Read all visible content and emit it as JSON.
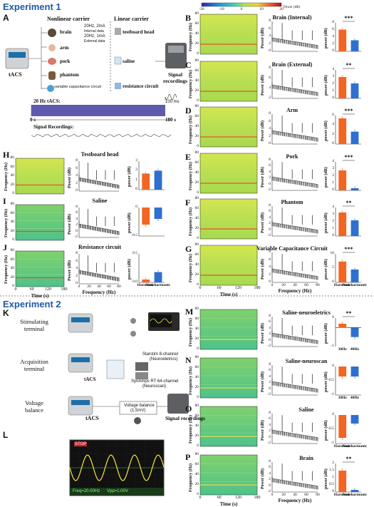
{
  "exp1": "Experiment 1",
  "exp2": "Experiment 2",
  "panels": {
    "A": "A",
    "B": "B",
    "C": "C",
    "D": "D",
    "E": "E",
    "F": "F",
    "G": "G",
    "H": "H",
    "I": "I",
    "J": "J",
    "K": "K",
    "L": "L",
    "M": "M",
    "N": "N",
    "O": "O",
    "P": "P"
  },
  "colorbar": {
    "ticks": [
      "-20",
      "-10",
      "0",
      "10",
      "20"
    ],
    "unit": "Power (dB)",
    "colors": [
      "#2b22b8",
      "#1e8fe0",
      "#36d1c4",
      "#b7e44a",
      "#f5d233",
      "#f0622e",
      "#b0121b"
    ]
  },
  "diagramA": {
    "nonlinear": "Nonlinear carrier",
    "linear": "Linear carrier",
    "tacs": "tACS",
    "brain": "brain",
    "brain_notes": [
      "20Hz, 2mA",
      "Internal data",
      "20Hz, 1mA",
      "External data"
    ],
    "arm": "arm",
    "pork": "pork",
    "phantom": "phantom",
    "varcap": "variable capacitance circuit",
    "testboard": "testboard head",
    "saline": "saline",
    "resistance": "resistance circuit",
    "signal": "Signal recordings",
    "wave_label": "20 Hz tACS:",
    "wave_start": "0 s",
    "wave_end": "180 s",
    "wave_scale": "100 ms",
    "sig_rec": "Signal Recordings:"
  },
  "axes": {
    "freq": "Frequency (Hz)",
    "time": "Time (s)",
    "power": "Power (dB)",
    "power_small": "power (dB)",
    "freq_x": "Frequency (Hz)"
  },
  "spec_yticks": [
    "0",
    "20",
    "40",
    "60",
    "80"
  ],
  "spec_xticks": [
    "0",
    "60",
    "120",
    "180"
  ],
  "psd_xticks": [
    "0",
    "20",
    "40",
    "60",
    "80"
  ],
  "bar_cats": [
    "Harmonic",
    "Non-harmonic"
  ],
  "bar_cats2": [
    "30Hz",
    "40Hz"
  ],
  "bar_colors": {
    "harmonic": "#f26522",
    "nonharmonic": "#2e6fcf"
  },
  "rows1": [
    {
      "panel": "B",
      "title": "Brain  (Internal)",
      "sig": "***",
      "bars": [
        6.1,
        3.1
      ],
      "ylim": [
        0,
        8
      ],
      "yticks": [
        "0",
        "2",
        "4",
        "6",
        "8"
      ],
      "psdTicks": [
        "0",
        "2",
        "4",
        "6",
        "8"
      ]
    },
    {
      "panel": "C",
      "title": "Brain  (External)",
      "sig": "**",
      "bars": [
        3.0,
        2.1
      ],
      "ylim": [
        0,
        4
      ],
      "yticks": [
        "0",
        "1",
        "2",
        "3",
        "4"
      ],
      "psdTicks": [
        "2",
        "4",
        "6",
        "8"
      ]
    },
    {
      "panel": "D",
      "title": "Arm",
      "sig": "***",
      "bars": [
        5.4,
        2.6
      ],
      "ylim": [
        0,
        6
      ],
      "yticks": [
        "0",
        "2",
        "4",
        "6"
      ],
      "psdTicks": [
        "0",
        "2",
        "4",
        "6",
        "8"
      ]
    },
    {
      "panel": "E",
      "title": "Pork",
      "sig": "***",
      "bars": [
        2.8,
        0.3
      ],
      "ylim": [
        0,
        4
      ],
      "yticks": [
        "0",
        "1",
        "2",
        "3",
        "4"
      ],
      "psdTicks": [
        "-2",
        "0",
        "2",
        "4",
        "6",
        "8"
      ]
    },
    {
      "panel": "F",
      "title": "Phantom",
      "sig": "**",
      "bars": [
        3.3,
        2.2
      ],
      "ylim": [
        0,
        4
      ],
      "yticks": [
        "0",
        "1",
        "2",
        "3",
        "4"
      ],
      "psdTicks": [
        "-2",
        "0",
        "2",
        "4",
        "6",
        "8"
      ]
    },
    {
      "panel": "G",
      "title": "Variable Capacitance Circuit",
      "sig": "***",
      "bars": [
        7.3,
        4.5
      ],
      "ylim": [
        0,
        10
      ],
      "yticks": [
        "0",
        "5",
        "10"
      ],
      "psdTicks": [
        "0",
        "2",
        "4",
        "6",
        "8"
      ]
    }
  ],
  "rowsLeft": [
    {
      "panel": "H",
      "title": "Testboard head",
      "sig": "",
      "bars": [
        1.7,
        2.0
      ],
      "ylim": [
        0,
        3
      ],
      "yticks": [
        "0",
        "1",
        "2",
        "3"
      ],
      "psdTicks": [
        "0",
        "2",
        "4",
        "6",
        "8"
      ]
    },
    {
      "panel": "I",
      "title": "Saline",
      "sig": "",
      "bars": [
        -0.3,
        -0.2
      ],
      "ylim": [
        -0.5,
        0
      ],
      "yticks": [
        "-0.5",
        "0"
      ],
      "psdTicks": [
        "-2",
        "0",
        "2",
        "4",
        "6",
        "8"
      ]
    },
    {
      "panel": "J",
      "title": "Resistance circuit",
      "sig": "",
      "bars": [
        0.05,
        0.18
      ],
      "ylim": [
        0,
        0.5
      ],
      "yticks": [
        "0.0",
        "0.5"
      ],
      "psdTicks": [
        "0",
        "2",
        "4",
        "6",
        "8"
      ]
    }
  ],
  "rows2": [
    {
      "panel": "M",
      "title": "Saline-neuroeletrics",
      "sig": "**",
      "bars": [
        0.2,
        -0.5
      ],
      "ylim": [
        -1,
        0.5
      ],
      "yticks": [
        "-1",
        "0"
      ],
      "cats": "bar_cats2"
    },
    {
      "panel": "N",
      "title": "Saline-neuroscan",
      "sig": "",
      "bars": [
        -0.35,
        -0.35
      ],
      "ylim": [
        -1,
        0
      ],
      "yticks": [
        "-1",
        "-0.5",
        "0"
      ],
      "cats": "bar_cats2"
    },
    {
      "panel": "O",
      "title": "Saline",
      "sig": "",
      "bars": [
        -0.8,
        -0.3
      ],
      "ylim": [
        -1,
        0
      ],
      "yticks": [
        "-1",
        "-0.5",
        "0"
      ],
      "cats": "bar_cats"
    },
    {
      "panel": "P",
      "title": "Brain",
      "sig": "**",
      "bars": [
        1.5,
        0.15
      ],
      "ylim": [
        0,
        2
      ],
      "yticks": [
        "0",
        "0.5",
        "1",
        "1.5",
        "2"
      ],
      "cats": "bar_cats"
    }
  ],
  "k_labels": {
    "stim": "Stimulating terminal",
    "acq": "Acquisition terminal",
    "volt": "Voltage balance",
    "tacs": "tACS",
    "tacs2": "tACS",
    "starstim": "Starstim 8-channel",
    "neuroelec": "(Neuroeletrics)",
    "synamps": "SynAmps RT 64-channel",
    "neuroscan": "(Neuroscan)",
    "vbal": "Voltage balance",
    "vbal2": "(1.5mV)",
    "signal": "Signal recordings"
  },
  "osc": {
    "top": "STOP",
    "bottom": [
      "Freq=20.00Hz",
      "Vpp=1.00V"
    ]
  }
}
